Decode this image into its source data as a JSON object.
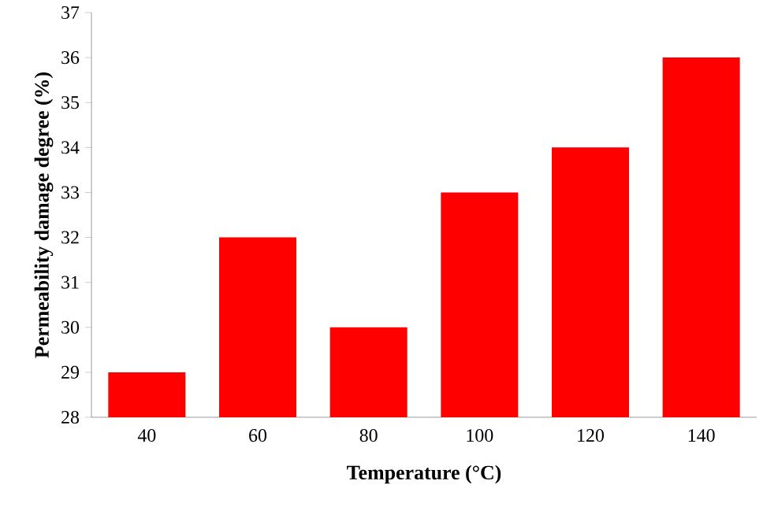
{
  "chart_data": {
    "type": "bar",
    "xlabel": "Temperature (°C)",
    "ylabel": "Permeability damage degree (%)",
    "categories": [
      "40",
      "60",
      "80",
      "100",
      "120",
      "140"
    ],
    "values": [
      29,
      32,
      30,
      33,
      34,
      36
    ],
    "color": "#ff0000",
    "ylim": [
      28,
      37
    ],
    "yticks": [
      28,
      29,
      30,
      31,
      32,
      33,
      34,
      35,
      36,
      37
    ],
    "grid": false
  }
}
